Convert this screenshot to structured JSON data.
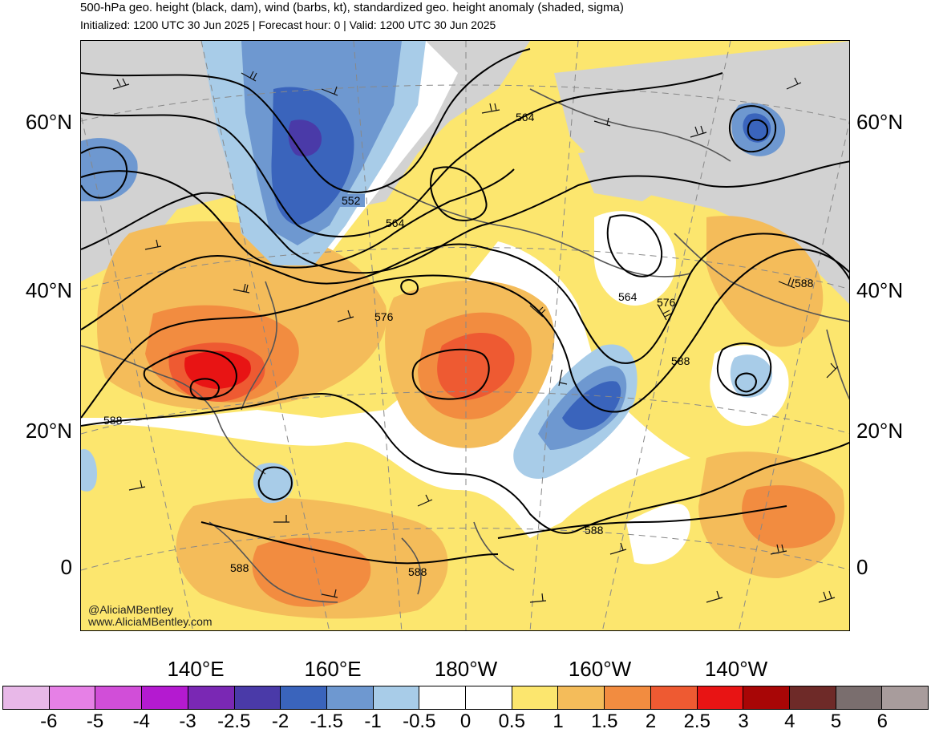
{
  "title": "500-hPa geo. height (black, dam), wind (barbs, kt), standardized geo. height anomaly (shaded, sigma)",
  "subtitle": "Initialized: 1200 UTC 30 Jun 2025 | Forecast hour: 0 | Valid: 1200 UTC 30 Jun 2025",
  "lat_labels": [
    "60°N",
    "40°N",
    "20°N",
    "0"
  ],
  "lon_labels": [
    "140°E",
    "160°E",
    "180°W",
    "160°W",
    "140°W"
  ],
  "contour_labels": [
    "552",
    "564",
    "564",
    "576",
    "564",
    "576",
    "588",
    "588",
    "588",
    "588",
    "588",
    "588"
  ],
  "watermark": [
    "@AliciaMBentley",
    "www.AliciaMBentley.com"
  ],
  "colorbar": {
    "ticks": [
      "-6",
      "-5",
      "-4",
      "-3",
      "-2.5",
      "-2",
      "-1.5",
      "-1",
      "-0.5",
      "0",
      "0.5",
      "1",
      "1.5",
      "2",
      "2.5",
      "3",
      "4",
      "5",
      "6"
    ],
    "colors": [
      "#e8b8e8",
      "#e680e6",
      "#d14ed8",
      "#b41ad0",
      "#7a28b4",
      "#4a3aa8",
      "#3a64bc",
      "#6e98d0",
      "#a8cce8",
      "#ffffff",
      "#ffffff",
      "#fce66e",
      "#f4bc5a",
      "#f28c40",
      "#ee5a32",
      "#e81414",
      "#a80606",
      "#6e2a28",
      "#7a6e6e",
      "#a89c9c"
    ]
  },
  "colors": {
    "land_mask": "#d2d2d2",
    "contour": "#000000",
    "gridline": "#888888"
  }
}
